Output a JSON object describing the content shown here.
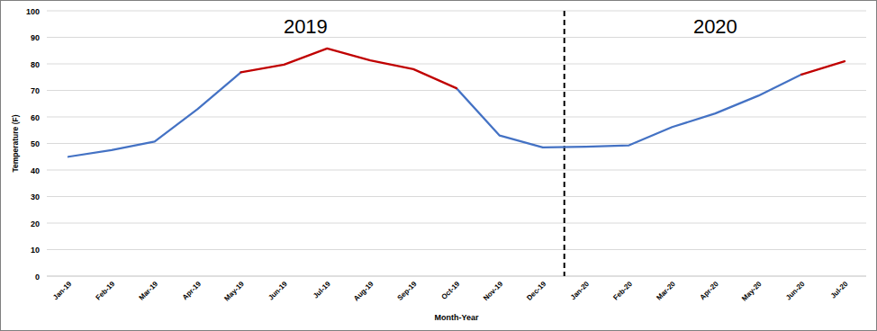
{
  "chart_data": {
    "type": "line",
    "x_label": "Month-Year",
    "y_label": "Temperature (F)",
    "annotations": [
      {
        "text": "2019",
        "from": "Jan-19",
        "to": "Dec-19"
      },
      {
        "text": "2020",
        "from": "Jan-20",
        "to": "Jul-20"
      }
    ],
    "categories": [
      "Jan-19",
      "Feb-19",
      "Mar-19",
      "Apr-19",
      "May-19",
      "Jun-19",
      "Jul-19",
      "Aug-19",
      "Sep-19",
      "Oct-19",
      "Nov-19",
      "Dec-19",
      "Jan-20",
      "Feb-20",
      "Mar-20",
      "Apr-20",
      "May-20",
      "Jun-20",
      "Jul-20"
    ],
    "series": [
      {
        "color": "#4472c4",
        "values": [
          45,
          47.5,
          50.7,
          63,
          76.8,
          null,
          null,
          null,
          null,
          70.8,
          53,
          48.5,
          48.8,
          49.3,
          56.2,
          61.3,
          68,
          76,
          null
        ]
      },
      {
        "color": "#c00000",
        "values": [
          null,
          null,
          null,
          null,
          76.8,
          79.7,
          85.8,
          81.3,
          78,
          70.8,
          null,
          null,
          null,
          null,
          null,
          null,
          null,
          76,
          81
        ]
      }
    ],
    "ylim": [
      0,
      100
    ],
    "yticks": [
      0,
      10,
      20,
      30,
      40,
      50,
      60,
      70,
      80,
      90,
      100
    ],
    "grid": true
  }
}
